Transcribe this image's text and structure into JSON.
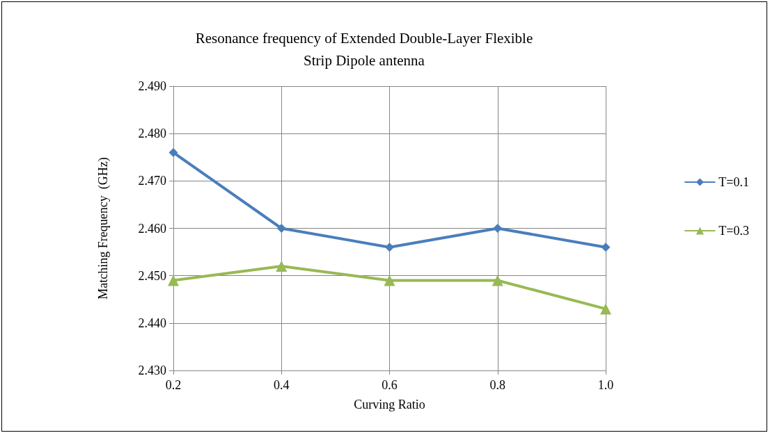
{
  "chart_data": {
    "type": "line",
    "title": "Resonance frequency of Extended Double-Layer Flexible\nStrip Dipole antenna",
    "xlabel": "Curving Ratio",
    "ylabel": "Matching Frequency  (GHz)",
    "categories": [
      "0.2",
      "0.4",
      "0.6",
      "0.8",
      "1.0"
    ],
    "series": [
      {
        "name": "T=0.1",
        "color": "#4a7ebb",
        "marker": "diamond",
        "values": [
          2.476,
          2.46,
          2.456,
          2.46,
          2.456
        ]
      },
      {
        "name": "T=0.3",
        "color": "#98b954",
        "marker": "triangle",
        "values": [
          2.449,
          2.452,
          2.449,
          2.449,
          2.443
        ]
      }
    ],
    "ylim": [
      2.43,
      2.49
    ],
    "yticks": [
      {
        "value": 2.43,
        "label": "2.430"
      },
      {
        "value": 2.44,
        "label": "2.440"
      },
      {
        "value": 2.45,
        "label": "2.450"
      },
      {
        "value": 2.46,
        "label": "2.460"
      },
      {
        "value": 2.47,
        "label": "2.470"
      },
      {
        "value": 2.48,
        "label": "2.480"
      },
      {
        "value": 2.49,
        "label": "2.490"
      }
    ],
    "grid": true,
    "legend": "right",
    "line_style": "solid"
  }
}
